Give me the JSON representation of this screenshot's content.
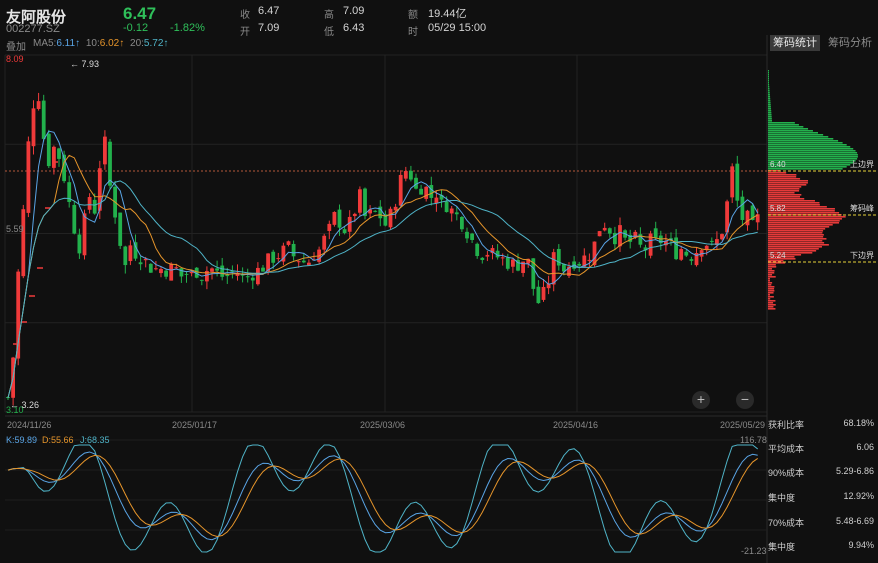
{
  "header": {
    "name": "友阿股份",
    "code": "002277.SZ",
    "price": "6.47",
    "change": "-0.12",
    "change_pct": "-1.82%",
    "quote": [
      {
        "label": "收",
        "value": "6.47"
      },
      {
        "label": "开",
        "value": "7.09"
      },
      {
        "label": "高",
        "value": "7.09"
      },
      {
        "label": "低",
        "value": "6.43"
      },
      {
        "label": "额",
        "value": "19.44亿"
      },
      {
        "label": "时",
        "value": "05/29 15:00"
      }
    ],
    "overlay_label": "叠加",
    "ma": [
      {
        "label": "MA5:",
        "value": "6.11↑",
        "color": "#5aa5e6"
      },
      {
        "label": "10:",
        "value": "6.02↑",
        "color": "#e6952b"
      },
      {
        "label": "20:",
        "value": "5.72↑",
        "color": "#4fb3c7"
      }
    ]
  },
  "tabs": {
    "chip_stats": "筹码统计",
    "chip_analysis": "筹码分析"
  },
  "chart": {
    "price_axis": {
      "top": "8.09",
      "mid": "5.59",
      "bottom": "3.10"
    },
    "max_marker": "← 7.93",
    "min_marker": "← 3.26",
    "dates": [
      "2024/11/26",
      "2025/01/17",
      "2025/03/06",
      "2025/04/16",
      "2025/05/29"
    ],
    "zoom_in": "+",
    "zoom_out": "−",
    "colors": {
      "up": "#f03a3a",
      "down": "#22b14c",
      "ma5": "#5aa5e6",
      "ma10": "#e6952b",
      "ma20": "#4fb3c7"
    }
  },
  "chip": {
    "upper_value": "6.40",
    "upper_label": "上边界",
    "peak_value": "5.82",
    "peak_label": "筹码峰",
    "lower_value": "5.24",
    "lower_label": "下边界"
  },
  "kdj": {
    "k_label": "K:59.89",
    "d_label": "D:55.66",
    "j_label": "J:68.35",
    "max": "116.78",
    "min": "-21.23"
  },
  "stats": [
    {
      "label": "获利比率",
      "value": "68.18%"
    },
    {
      "label": "平均成本",
      "value": "6.06"
    },
    {
      "label": "90%成本",
      "value": "5.29-6.86"
    },
    {
      "label": "集中度",
      "value": "12.92%"
    },
    {
      "label": "70%成本",
      "value": "5.48-6.69"
    },
    {
      "label": "集中度",
      "value": "9.94%"
    }
  ],
  "chart_data": {
    "type": "candlestick",
    "price_range": [
      3.1,
      8.09
    ],
    "x_ticks": [
      "2024/11/26",
      "2025/01/17",
      "2025/03/06",
      "2025/04/16",
      "2025/05/29"
    ],
    "series": [
      {
        "name": "MA5",
        "values": [
          6.11
        ]
      },
      {
        "name": "10",
        "values": [
          6.02
        ]
      },
      {
        "name": "20",
        "values": [
          5.72
        ]
      }
    ],
    "kdj": {
      "K": 59.89,
      "D": 55.66,
      "J": 68.35,
      "range": [
        -21.23,
        116.78
      ]
    }
  }
}
